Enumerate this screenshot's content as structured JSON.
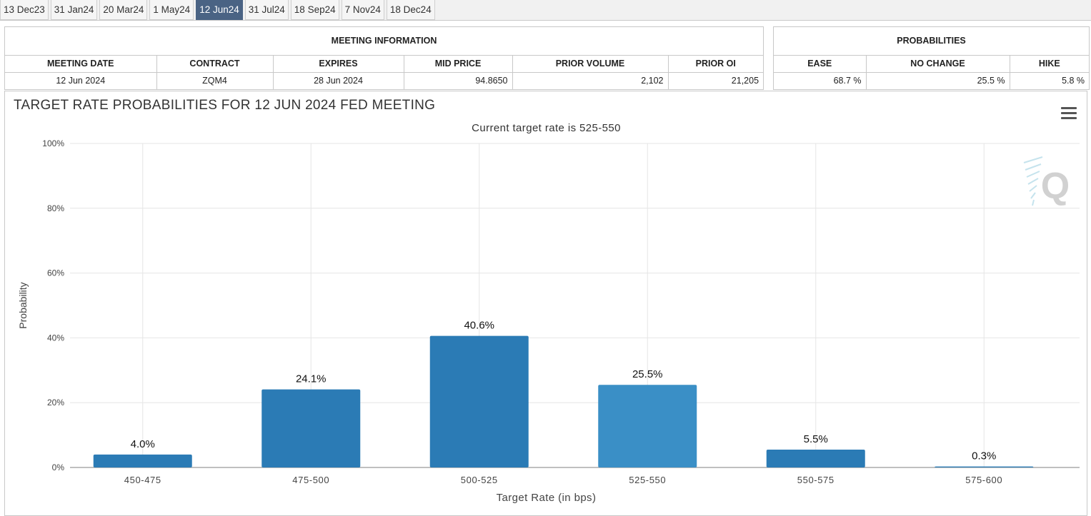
{
  "tabs": [
    "13 Dec23",
    "31 Jan24",
    "20 Mar24",
    "1 May24",
    "12 Jun24",
    "31 Jul24",
    "18 Sep24",
    "7 Nov24",
    "18 Dec24"
  ],
  "active_tab": "12 Jun24",
  "meeting_info": {
    "section_title": "MEETING INFORMATION",
    "headers": [
      "MEETING DATE",
      "CONTRACT",
      "EXPIRES",
      "MID PRICE",
      "PRIOR VOLUME",
      "PRIOR OI"
    ],
    "values": [
      "12 Jun 2024",
      "ZQM4",
      "28 Jun 2024",
      "94.8650",
      "2,102",
      "21,205"
    ]
  },
  "probabilities": {
    "section_title": "PROBABILITIES",
    "headers": [
      "EASE",
      "NO CHANGE",
      "HIKE"
    ],
    "values": [
      "68.7 %",
      "25.5 %",
      "5.8 %"
    ]
  },
  "colors": {
    "bar": "#2b7bb5",
    "bar_current": "#3a8fc6",
    "active_tab": "#4a6384",
    "grid": "#e6e6e6"
  },
  "chart_data": {
    "type": "bar",
    "title": "TARGET RATE PROBABILITIES FOR 12 JUN 2024 FED MEETING",
    "subtitle": "Current target rate is 525-550",
    "xlabel": "Target Rate (in bps)",
    "ylabel": "Probability",
    "categories": [
      "450-475",
      "475-500",
      "500-525",
      "525-550",
      "550-575",
      "575-600"
    ],
    "values": [
      4.0,
      24.1,
      40.6,
      25.5,
      5.5,
      0.3
    ],
    "data_labels": [
      "4.0%",
      "24.1%",
      "40.6%",
      "25.5%",
      "5.5%",
      "0.3%"
    ],
    "current_category": "525-550",
    "ylim": [
      0,
      100
    ],
    "yticks": [
      "0%",
      "20%",
      "40%",
      "60%",
      "80%",
      "100%"
    ],
    "ytick_values": [
      0,
      20,
      40,
      60,
      80,
      100
    ],
    "grid": true,
    "legend": false
  },
  "menu_icon": "hamburger-menu-icon",
  "logo_icon": "q-logo-icon"
}
